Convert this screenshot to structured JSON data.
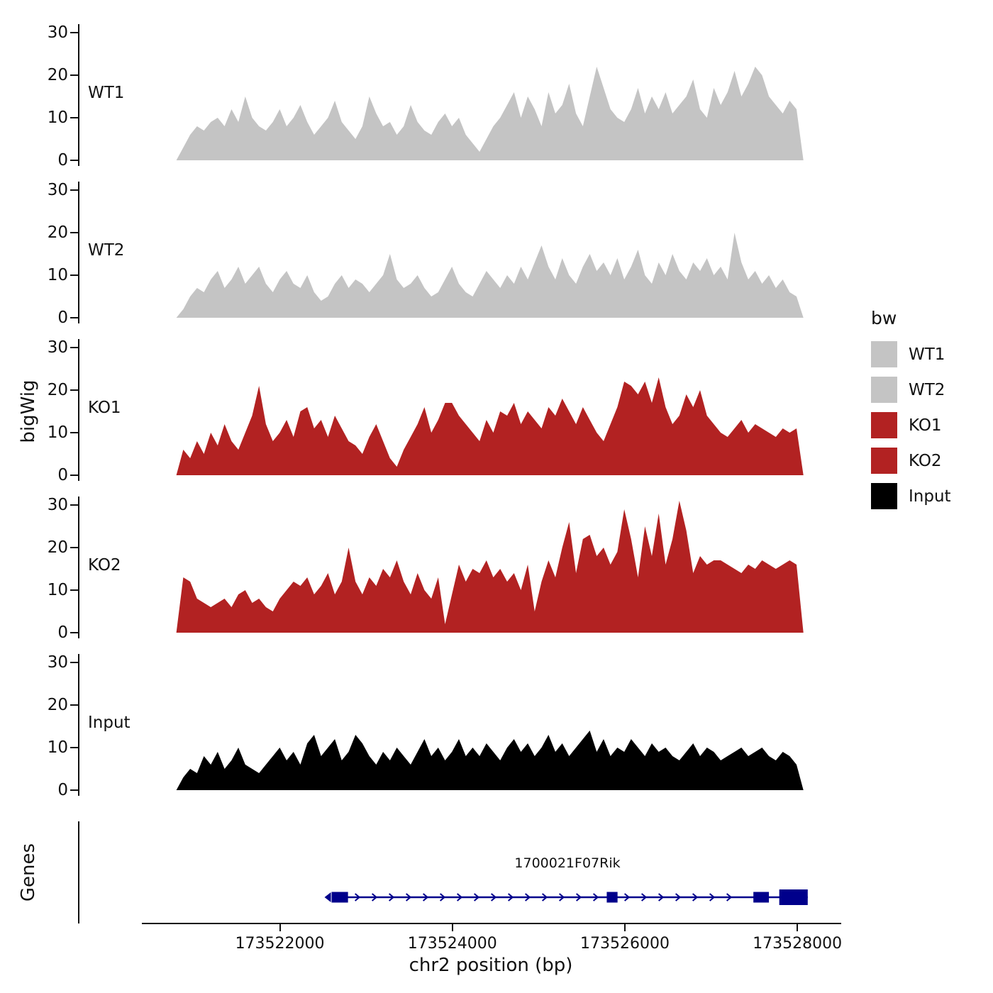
{
  "figure": {
    "ylab_left": "bigWig",
    "genes_lab": "Genes",
    "y_ticks": [
      "30",
      "20",
      "10",
      "0"
    ]
  },
  "chart_data": {
    "type": "area",
    "title": "",
    "xlabel": "chr2 position (bp)",
    "ylabel": "bigWig",
    "x_domain_bp": [
      173520400,
      173528500
    ],
    "coverage_x_range_bp": [
      173520800,
      173528070
    ],
    "ylim": [
      0,
      30
    ],
    "y_tick_values": [
      0,
      10,
      20,
      30
    ],
    "x_ticks": [
      {
        "bp": 173522000,
        "label": "173522000"
      },
      {
        "bp": 173524000,
        "label": "173524000"
      },
      {
        "bp": 173526000,
        "label": "173526000"
      },
      {
        "bp": 173528000,
        "label": "173528000"
      }
    ],
    "tracks": [
      {
        "name": "WT1",
        "color": "#c4c4c4",
        "values": [
          0,
          3,
          6,
          8,
          7,
          9,
          10,
          8,
          12,
          9,
          15,
          10,
          8,
          7,
          9,
          12,
          8,
          10,
          13,
          9,
          6,
          8,
          10,
          14,
          9,
          7,
          5,
          8,
          15,
          11,
          8,
          9,
          6,
          8,
          13,
          9,
          7,
          6,
          9,
          11,
          8,
          10,
          6,
          4,
          2,
          5,
          8,
          10,
          13,
          16,
          10,
          15,
          12,
          8,
          16,
          11,
          13,
          18,
          11,
          8,
          15,
          22,
          17,
          12,
          10,
          9,
          12,
          17,
          11,
          15,
          12,
          16,
          11,
          13,
          15,
          19,
          12,
          10,
          17,
          13,
          16,
          21,
          15,
          18,
          22,
          20,
          15,
          13,
          11,
          14,
          12,
          0
        ]
      },
      {
        "name": "WT2",
        "color": "#c4c4c4",
        "values": [
          0,
          2,
          5,
          7,
          6,
          9,
          11,
          7,
          9,
          12,
          8,
          10,
          12,
          8,
          6,
          9,
          11,
          8,
          7,
          10,
          6,
          4,
          5,
          8,
          10,
          7,
          9,
          8,
          6,
          8,
          10,
          15,
          9,
          7,
          8,
          10,
          7,
          5,
          6,
          9,
          12,
          8,
          6,
          5,
          8,
          11,
          9,
          7,
          10,
          8,
          12,
          9,
          13,
          17,
          12,
          9,
          14,
          10,
          8,
          12,
          15,
          11,
          13,
          10,
          14,
          9,
          12,
          16,
          10,
          8,
          13,
          10,
          15,
          11,
          9,
          13,
          11,
          14,
          10,
          12,
          9,
          20,
          13,
          9,
          11,
          8,
          10,
          7,
          9,
          6,
          5,
          0
        ]
      },
      {
        "name": "KO1",
        "color": "#b22222",
        "values": [
          0,
          6,
          4,
          8,
          5,
          10,
          7,
          12,
          8,
          6,
          10,
          14,
          21,
          12,
          8,
          10,
          13,
          9,
          15,
          16,
          11,
          13,
          9,
          14,
          11,
          8,
          7,
          5,
          9,
          12,
          8,
          4,
          2,
          6,
          9,
          12,
          16,
          10,
          13,
          17,
          17,
          14,
          12,
          10,
          8,
          13,
          10,
          15,
          14,
          17,
          12,
          15,
          13,
          11,
          16,
          14,
          18,
          15,
          12,
          16,
          13,
          10,
          8,
          12,
          16,
          22,
          21,
          19,
          22,
          17,
          23,
          16,
          12,
          14,
          19,
          16,
          20,
          14,
          12,
          10,
          9,
          11,
          13,
          10,
          12,
          11,
          10,
          9,
          11,
          10,
          11,
          0
        ]
      },
      {
        "name": "KO2",
        "color": "#b22222",
        "values": [
          0,
          13,
          12,
          8,
          7,
          6,
          7,
          8,
          6,
          9,
          10,
          7,
          8,
          6,
          5,
          8,
          10,
          12,
          11,
          13,
          9,
          11,
          14,
          9,
          12,
          20,
          12,
          9,
          13,
          11,
          15,
          13,
          17,
          12,
          9,
          14,
          10,
          8,
          13,
          2,
          9,
          16,
          12,
          15,
          14,
          17,
          13,
          15,
          12,
          14,
          10,
          16,
          5,
          12,
          17,
          13,
          20,
          26,
          14,
          22,
          23,
          18,
          20,
          16,
          19,
          29,
          22,
          13,
          25,
          18,
          28,
          16,
          22,
          31,
          24,
          14,
          18,
          16,
          17,
          17,
          16,
          15,
          14,
          16,
          15,
          17,
          16,
          15,
          16,
          17,
          16,
          0
        ]
      },
      {
        "name": "Input",
        "color": "#000000",
        "values": [
          0,
          3,
          5,
          4,
          8,
          6,
          9,
          5,
          7,
          10,
          6,
          5,
          4,
          6,
          8,
          10,
          7,
          9,
          6,
          11,
          13,
          8,
          10,
          12,
          7,
          9,
          13,
          11,
          8,
          6,
          9,
          7,
          10,
          8,
          6,
          9,
          12,
          8,
          10,
          7,
          9,
          12,
          8,
          10,
          8,
          11,
          9,
          7,
          10,
          12,
          9,
          11,
          8,
          10,
          13,
          9,
          11,
          8,
          10,
          12,
          14,
          9,
          12,
          8,
          10,
          9,
          12,
          10,
          8,
          11,
          9,
          10,
          8,
          7,
          9,
          11,
          8,
          10,
          9,
          7,
          8,
          9,
          10,
          8,
          9,
          10,
          8,
          7,
          9,
          8,
          6,
          0
        ]
      }
    ],
    "legend": {
      "title": "bw",
      "items": [
        {
          "label": "WT1",
          "color": "#c4c4c4"
        },
        {
          "label": "WT2",
          "color": "#c4c4c4"
        },
        {
          "label": "KO1",
          "color": "#b22222"
        },
        {
          "label": "KO2",
          "color": "#b22222"
        },
        {
          "label": "Input",
          "color": "#000000"
        }
      ]
    },
    "gene": {
      "name": "1700021F07Rik",
      "start": 173522600,
      "end": 173528120,
      "strand": "+",
      "color": "#00008b",
      "exons": [
        {
          "start": 173522600,
          "end": 173522790,
          "tall": false
        },
        {
          "start": 173525790,
          "end": 173525915,
          "tall": false
        },
        {
          "start": 173527490,
          "end": 173527670,
          "tall": false
        },
        {
          "start": 173527790,
          "end": 173528120,
          "tall": true
        }
      ]
    }
  }
}
